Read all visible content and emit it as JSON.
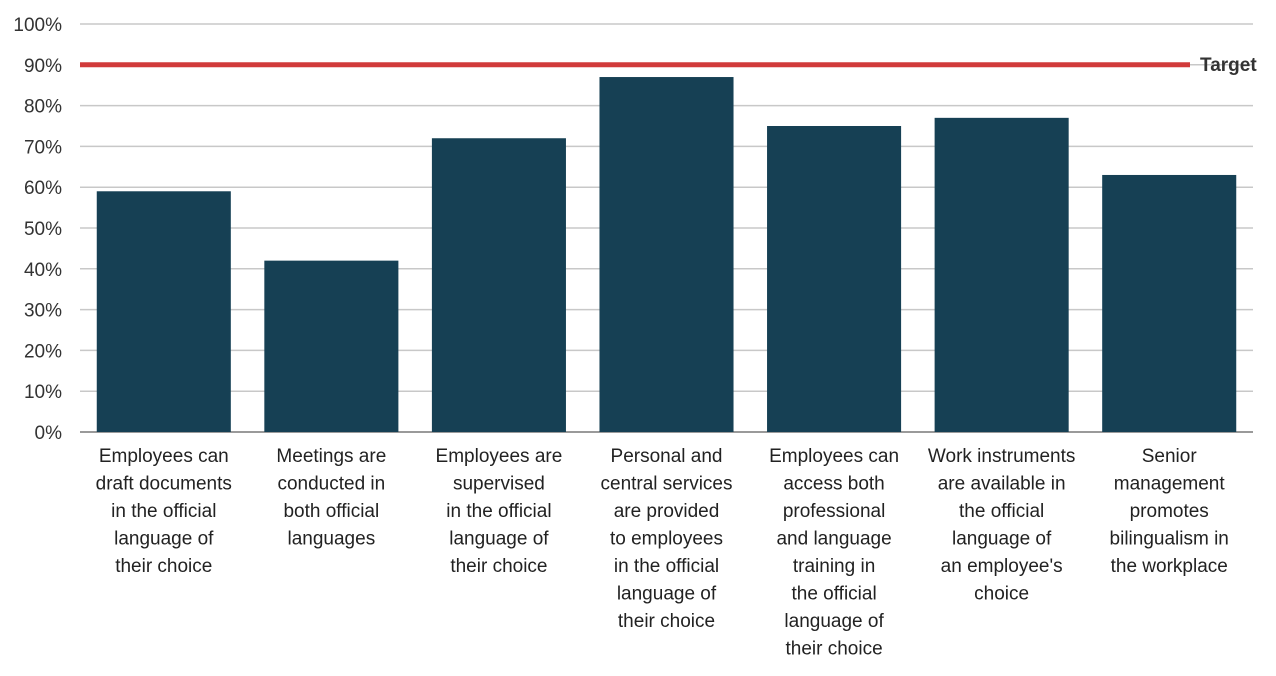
{
  "chart_data": {
    "type": "bar",
    "title": "",
    "xlabel": "",
    "ylabel": "",
    "ylim": [
      0,
      100
    ],
    "y_ticks": [
      "0%",
      "10%",
      "20%",
      "30%",
      "40%",
      "50%",
      "60%",
      "70%",
      "80%",
      "90%",
      "100%"
    ],
    "grid": true,
    "categories": [
      [
        "Employees can",
        "draft documents",
        "in the official",
        "language of",
        "their choice"
      ],
      [
        "Meetings are",
        "conducted in",
        "both official",
        "languages"
      ],
      [
        "Employees are",
        "supervised",
        "in the official",
        "language of",
        "their choice"
      ],
      [
        "Personal and",
        "central services",
        "are provided",
        "to employees",
        "in the official",
        "language of",
        "their choice"
      ],
      [
        "Employees can",
        "access both",
        "professional",
        "and language",
        "training in",
        "the official",
        "language of",
        "their choice"
      ],
      [
        "Work instruments",
        "are available in",
        "the official",
        "language of",
        "an employee's",
        "choice"
      ],
      [
        "Senior",
        "management",
        "promotes",
        "bilingualism in",
        "the workplace"
      ]
    ],
    "values": [
      59,
      42,
      72,
      87,
      75,
      77,
      63
    ],
    "target": {
      "label": "Target",
      "value": 90
    },
    "colors": {
      "bar": "#164054",
      "target": "#d13b3b",
      "grid": "#c8c8c8",
      "axis": "#9a9a9a"
    }
  }
}
